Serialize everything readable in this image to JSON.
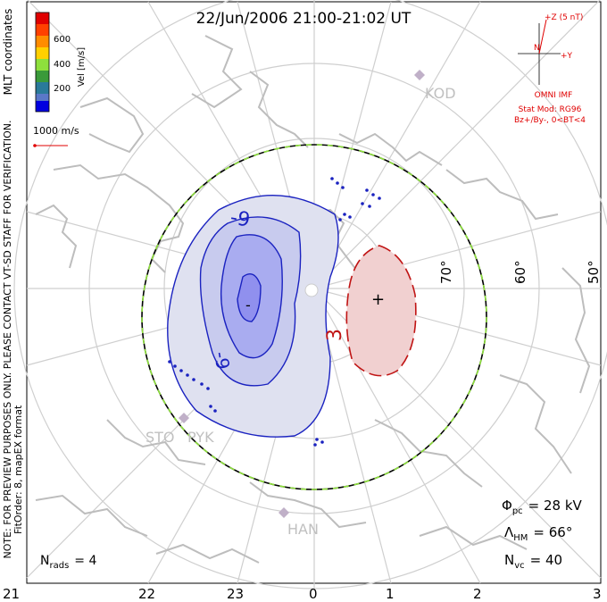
{
  "title": "22/Jun/2006 21:00-21:02 UT",
  "colorbar": {
    "label": "Vel [m/s]",
    "ticks": [
      "600",
      "400",
      "200"
    ],
    "colors": [
      "#e00000",
      "#ff4000",
      "#ff8c00",
      "#8ee03c",
      "#3a9a3a",
      "#2a7a9a",
      "#5a78c8",
      "#0000e0"
    ]
  },
  "coordinate_label": "MLT coordinates",
  "velocity_scale": "1000 m/s",
  "vertical_notes": {
    "line1": "NOTE: FOR PREVIEW PURPOSES ONLY. PLEASE CONTACT VT-SD STAFF FOR VERIFICATION.",
    "line2": "FitOrder: 8, mapEX format"
  },
  "imf": {
    "z_label": "+Z (5 nT)",
    "y_label": "+Y",
    "n_label": "N",
    "source": "OMNI IMF",
    "stat_mod": "Stat Mod: RG96",
    "condition": "Bz+/By-, 0<BT<4"
  },
  "latitude_labels": [
    "70°",
    "60°",
    "50°"
  ],
  "stations": [
    "KOD",
    "STO",
    "PYK",
    "HAN"
  ],
  "contours": {
    "negative_labels": [
      "-9",
      "-9",
      "-"
    ],
    "positive_labels": [
      "3",
      "+"
    ]
  },
  "stats": {
    "phi_pc_label": "Φ",
    "phi_pc_sub": "pc",
    "phi_pc_value": "= 28 kV",
    "lambda_label": "Λ",
    "lambda_sub": "HM",
    "lambda_value": "= 66°",
    "nvc_label": "N",
    "nvc_sub": "vc",
    "nvc_value": "= 40"
  },
  "nrads": {
    "label": "N",
    "sub": "rads",
    "value": "= 4"
  },
  "mlt_ticks": [
    "21",
    "22",
    "23",
    "0",
    "1",
    "2",
    "3"
  ],
  "colors": {
    "negative_fill": "#dfe1f0",
    "negative_inner": "#c8cbee",
    "negative_core": "#a9acf0",
    "negative_line": "#1a22c0",
    "positive_fill": "#f1d0d0",
    "positive_line": "#c01414",
    "boundary_green": "#8ee03c",
    "coast": "#bdbdbd",
    "grid": "#cfcfcf"
  }
}
